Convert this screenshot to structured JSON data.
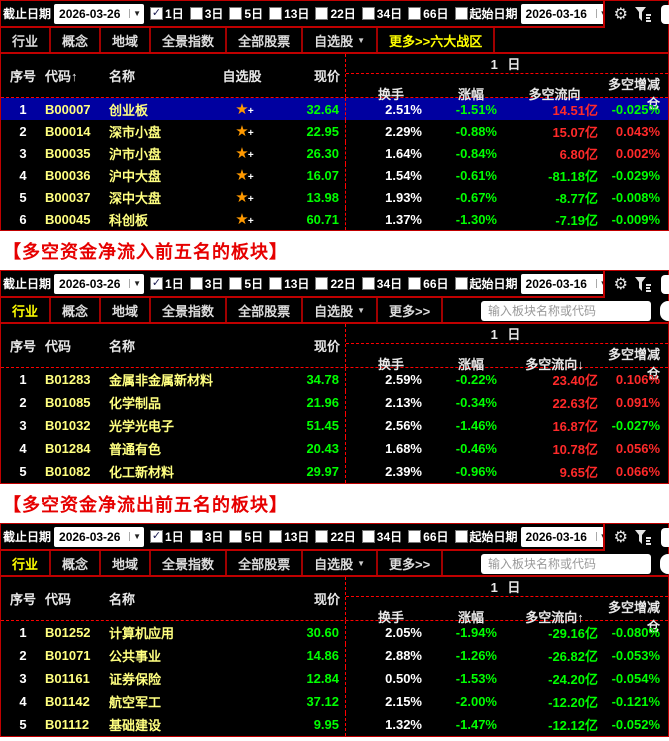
{
  "colors": {
    "panel_background": "#000000",
    "border_red": "#c00000",
    "dashed_red": "#ff0000",
    "value_up_red": "#ff2a2a",
    "value_down_green": "#00ff00",
    "code_yellow": "#ffff80",
    "tab_active_yellow": "#ffff00",
    "selected_row_blue": "#0000a0",
    "star_orange": "#ff9900",
    "heading_red": "#e60000"
  },
  "toolbar": {
    "end_date_label": "截止日期",
    "end_date_value": "2026-03-26",
    "periods": [
      {
        "label": "1日",
        "checked": true
      },
      {
        "label": "3日",
        "checked": false
      },
      {
        "label": "5日",
        "checked": false
      },
      {
        "label": "13日",
        "checked": false
      },
      {
        "label": "22日",
        "checked": false
      },
      {
        "label": "34日",
        "checked": false
      },
      {
        "label": "66日",
        "checked": false
      }
    ],
    "start_date_label": "起始日期",
    "start_date_checked": false,
    "start_date_value": "2026-03-16"
  },
  "tabs": [
    "行业",
    "概念",
    "地域",
    "全景指数",
    "全部股票",
    "自选股"
  ],
  "search_placeholder": "输入板块名称或代码",
  "headings": {
    "inflow": "【多空资金净流入前五名的板块】",
    "outflow": "【多空资金净流出前五名的板块】"
  },
  "panels": [
    {
      "more_label": "更多>>六大战区",
      "more_active": true,
      "active_tab": -1,
      "has_favorite_col": true,
      "has_search": false,
      "unit": "亿",
      "columns": {
        "seq": "序号",
        "code": "代码↑",
        "name": "名称",
        "favorite": "自选股",
        "price": "现价",
        "group": "1 日",
        "turnover": "换手",
        "change": "涨幅",
        "flow": "多空流向",
        "delta": "多空增减仓"
      },
      "rows": [
        {
          "seq": "1",
          "code": "B00007",
          "name": "创业板",
          "price": "32.64",
          "turnover": "2.51%",
          "change": "-1.51%",
          "flow": "14.51",
          "flow_up": true,
          "delta": "-0.025%",
          "delta_up": false,
          "selected": true
        },
        {
          "seq": "2",
          "code": "B00014",
          "name": "深市小盘",
          "price": "22.95",
          "turnover": "2.29%",
          "change": "-0.88%",
          "flow": "15.07",
          "flow_up": true,
          "delta": "0.043%",
          "delta_up": true,
          "selected": false
        },
        {
          "seq": "3",
          "code": "B00035",
          "name": "沪市小盘",
          "price": "26.30",
          "turnover": "1.64%",
          "change": "-0.84%",
          "flow": "6.80",
          "flow_up": true,
          "delta": "0.002%",
          "delta_up": true,
          "selected": false
        },
        {
          "seq": "4",
          "code": "B00036",
          "name": "沪中大盘",
          "price": "16.07",
          "turnover": "1.54%",
          "change": "-0.61%",
          "flow": "-81.18",
          "flow_up": false,
          "delta": "-0.029%",
          "delta_up": false,
          "selected": false
        },
        {
          "seq": "5",
          "code": "B00037",
          "name": "深中大盘",
          "price": "13.98",
          "turnover": "1.93%",
          "change": "-0.67%",
          "flow": "-8.77",
          "flow_up": false,
          "delta": "-0.008%",
          "delta_up": false,
          "selected": false
        },
        {
          "seq": "6",
          "code": "B00045",
          "name": "科创板",
          "price": "60.71",
          "turnover": "1.37%",
          "change": "-1.30%",
          "flow": "-7.19",
          "flow_up": false,
          "delta": "-0.009%",
          "delta_up": false,
          "selected": false
        }
      ]
    },
    {
      "more_label": "更多>>",
      "more_active": false,
      "active_tab": 0,
      "has_favorite_col": false,
      "has_search": true,
      "unit": "亿",
      "columns": {
        "seq": "序号",
        "code": "代码",
        "name": "名称",
        "price": "现价",
        "group": "1 日",
        "turnover": "换手",
        "change": "涨幅",
        "flow": "多空流向↓",
        "delta": "多空增减仓"
      },
      "rows": [
        {
          "seq": "1",
          "code": "B01283",
          "name": "金属非金属新材料",
          "price": "34.78",
          "turnover": "2.59%",
          "change": "-0.22%",
          "flow": "23.40",
          "flow_up": true,
          "delta": "0.106%",
          "delta_up": true,
          "selected": false
        },
        {
          "seq": "2",
          "code": "B01085",
          "name": "化学制品",
          "price": "21.96",
          "turnover": "2.13%",
          "change": "-0.34%",
          "flow": "22.63",
          "flow_up": true,
          "delta": "0.091%",
          "delta_up": true,
          "selected": false
        },
        {
          "seq": "3",
          "code": "B01032",
          "name": "光学光电子",
          "price": "51.45",
          "turnover": "2.56%",
          "change": "-1.46%",
          "flow": "16.87",
          "flow_up": true,
          "delta": "-0.027%",
          "delta_up": false,
          "selected": false
        },
        {
          "seq": "4",
          "code": "B01284",
          "name": "普通有色",
          "price": "20.43",
          "turnover": "1.68%",
          "change": "-0.46%",
          "flow": "10.78",
          "flow_up": true,
          "delta": "0.056%",
          "delta_up": true,
          "selected": false
        },
        {
          "seq": "5",
          "code": "B01082",
          "name": "化工新材料",
          "price": "29.97",
          "turnover": "2.39%",
          "change": "-0.96%",
          "flow": "9.65",
          "flow_up": true,
          "delta": "0.066%",
          "delta_up": true,
          "selected": false
        }
      ]
    },
    {
      "more_label": "更多>>",
      "more_active": false,
      "active_tab": 0,
      "has_favorite_col": false,
      "has_search": true,
      "unit": "亿",
      "columns": {
        "seq": "序号",
        "code": "代码",
        "name": "名称",
        "price": "现价",
        "group": "1 日",
        "turnover": "换手",
        "change": "涨幅",
        "flow": "多空流向↑",
        "delta": "多空增减仓"
      },
      "rows": [
        {
          "seq": "1",
          "code": "B01252",
          "name": "计算机应用",
          "price": "30.60",
          "turnover": "2.05%",
          "change": "-1.94%",
          "flow": "-29.16",
          "flow_up": false,
          "delta": "-0.080%",
          "delta_up": false,
          "selected": false
        },
        {
          "seq": "2",
          "code": "B01071",
          "name": "公共事业",
          "price": "14.86",
          "turnover": "2.88%",
          "change": "-1.26%",
          "flow": "-26.82",
          "flow_up": false,
          "delta": "-0.053%",
          "delta_up": false,
          "selected": false
        },
        {
          "seq": "3",
          "code": "B01161",
          "name": "证券保险",
          "price": "12.84",
          "turnover": "0.50%",
          "change": "-1.53%",
          "flow": "-24.20",
          "flow_up": false,
          "delta": "-0.054%",
          "delta_up": false,
          "selected": false
        },
        {
          "seq": "4",
          "code": "B01142",
          "name": "航空军工",
          "price": "37.12",
          "turnover": "2.15%",
          "change": "-2.00%",
          "flow": "-12.20",
          "flow_up": false,
          "delta": "-0.121%",
          "delta_up": false,
          "selected": false
        },
        {
          "seq": "5",
          "code": "B01112",
          "name": "基础建设",
          "price": "9.95",
          "turnover": "1.32%",
          "change": "-1.47%",
          "flow": "-12.12",
          "flow_up": false,
          "delta": "-0.052%",
          "delta_up": false,
          "selected": false
        }
      ]
    }
  ]
}
